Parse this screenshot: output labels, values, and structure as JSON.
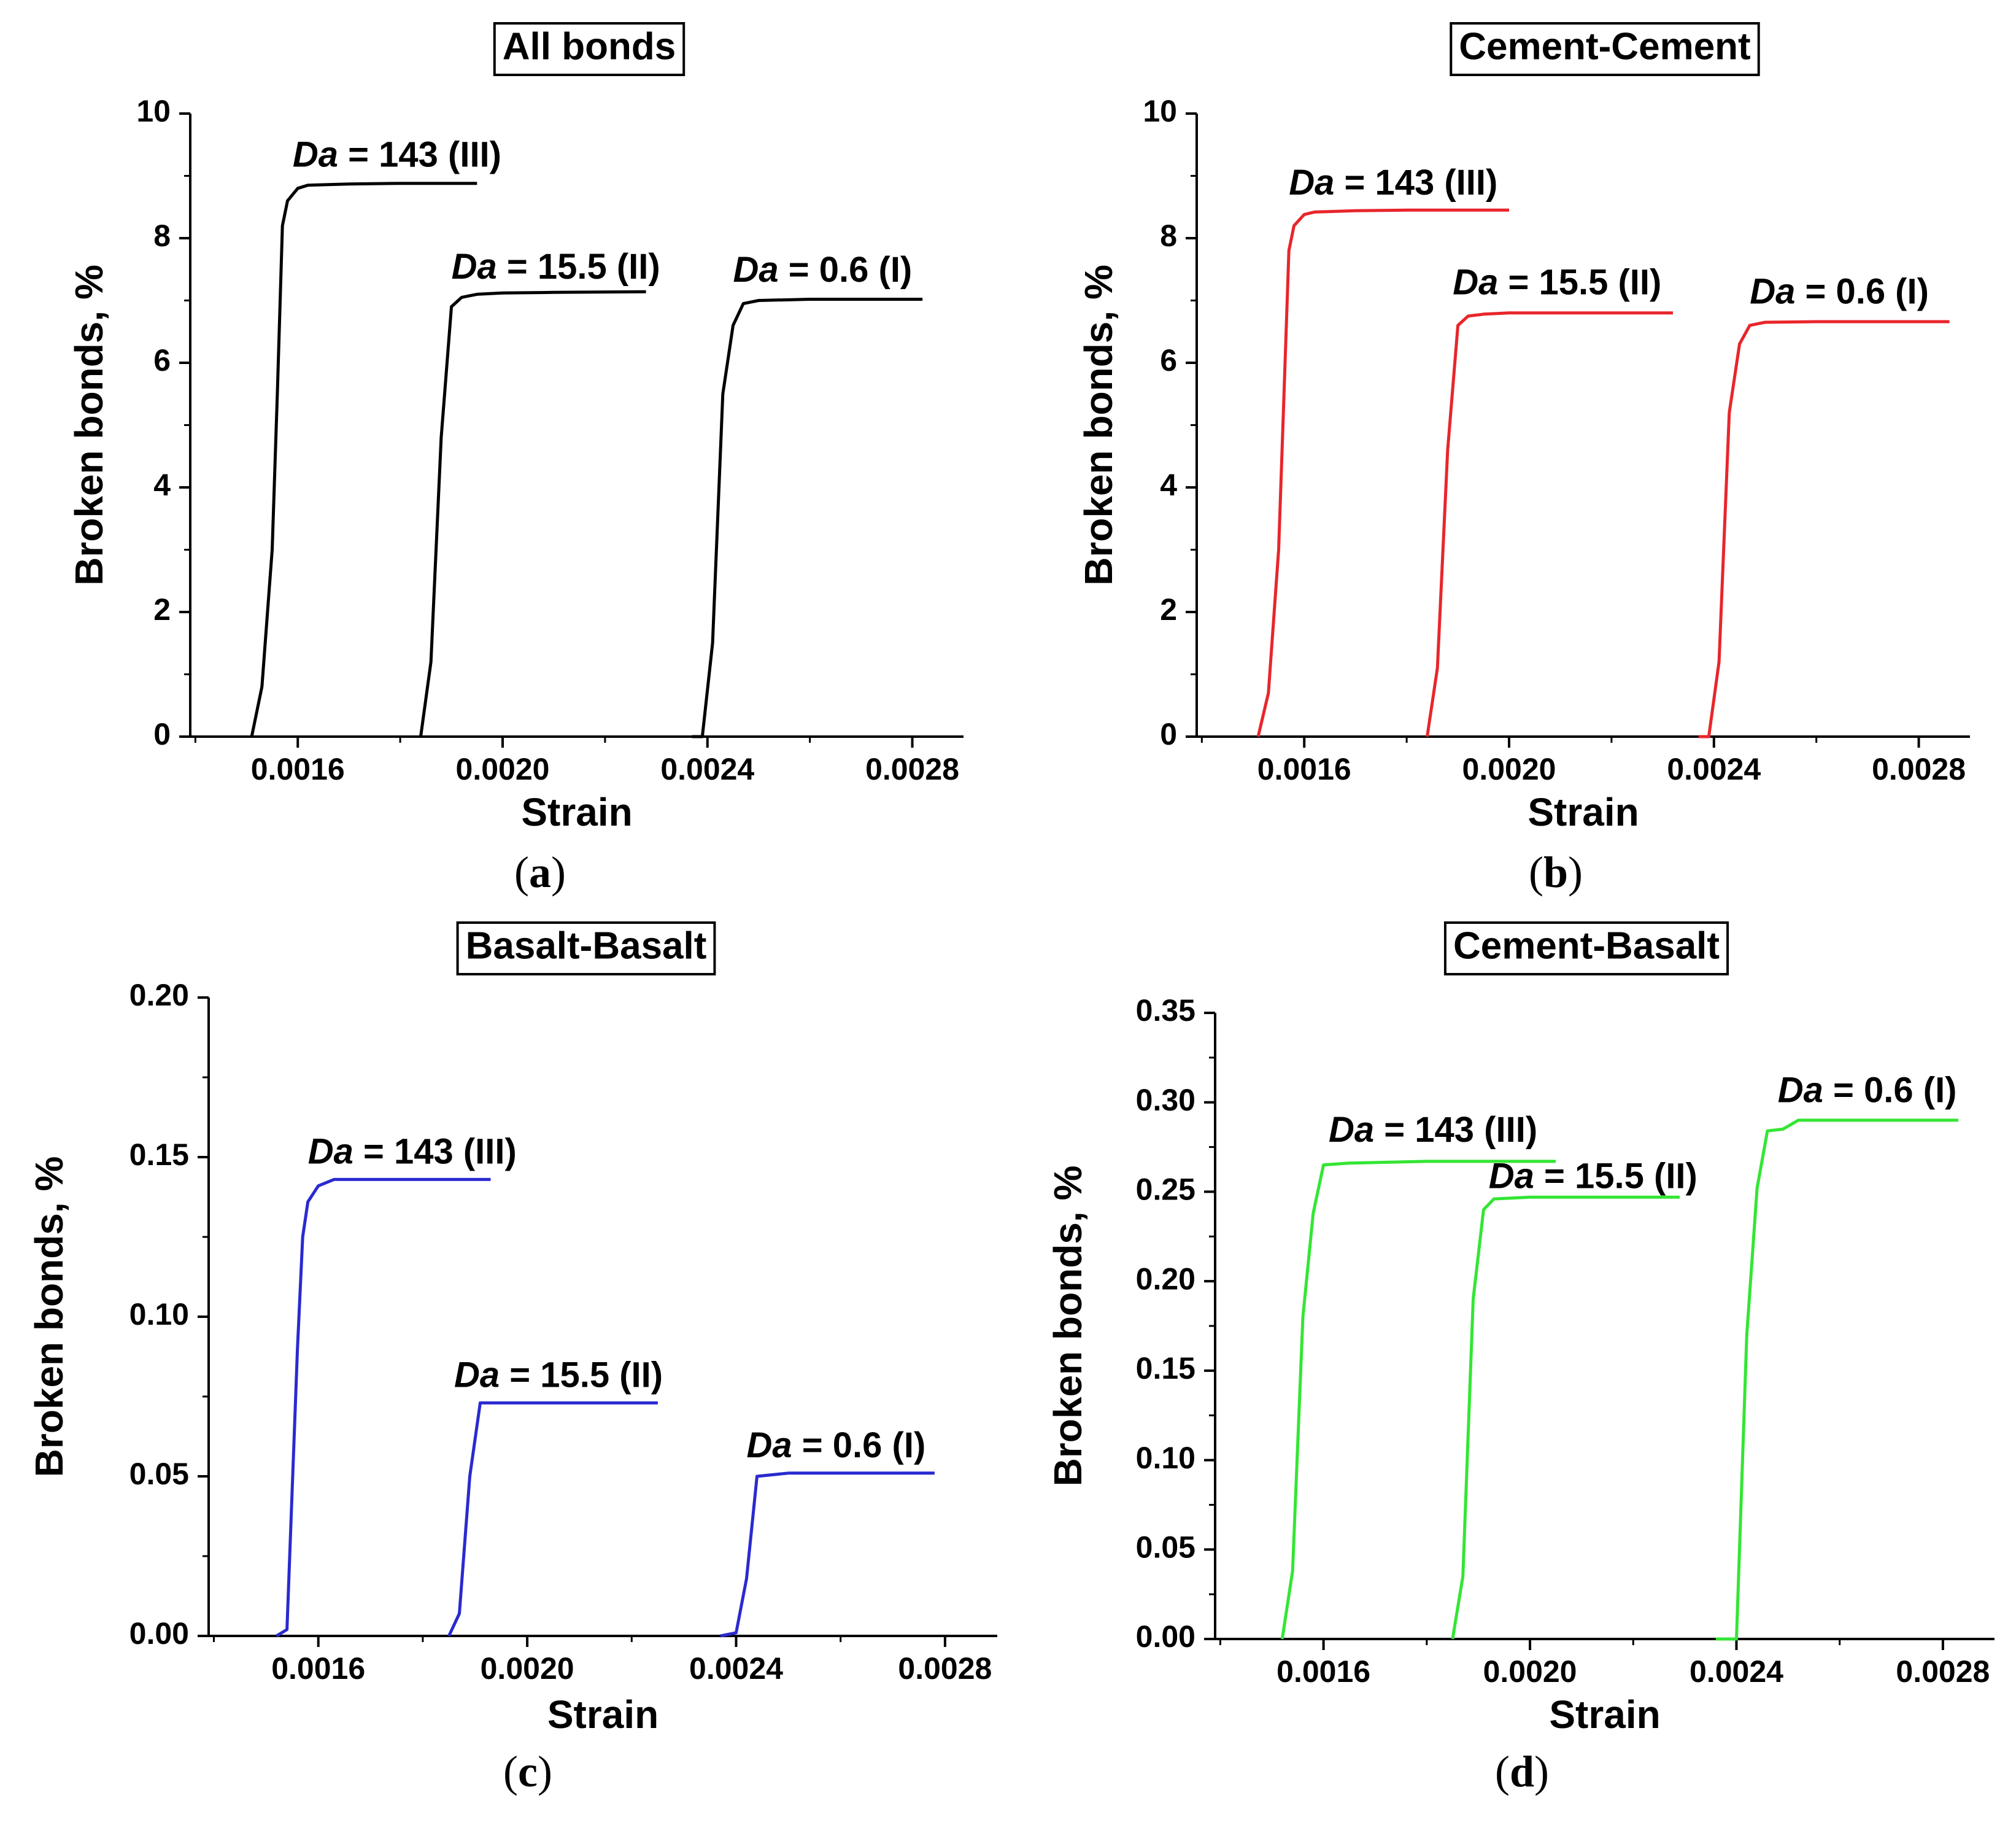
{
  "chart_data": [
    {
      "type": "line",
      "panel": "a",
      "title": "All bonds",
      "xlabel": "Strain",
      "ylabel": "Broken bonds, %",
      "xlim": [
        0.00139,
        0.0029
      ],
      "ylim": [
        0,
        10
      ],
      "xticks": [
        0.0016,
        0.002,
        0.0024,
        0.0028
      ],
      "xtick_labels": [
        "0.0016",
        "0.0020",
        "0.0024",
        "0.0028"
      ],
      "yticks": [
        0,
        2,
        4,
        6,
        8,
        10
      ],
      "ytick_labels": [
        "0",
        "2",
        "4",
        "6",
        "8",
        "10"
      ],
      "color": "#000000",
      "series": [
        {
          "name": "Da = 143 (III)",
          "x": [
            0.00151,
            0.00153,
            0.00155,
            0.00156,
            0.00157,
            0.00158,
            0.0016,
            0.00162,
            0.0017,
            0.0018,
            0.00195
          ],
          "y": [
            0,
            0.8,
            3.0,
            5.5,
            8.2,
            8.6,
            8.8,
            8.85,
            8.87,
            8.88,
            8.88
          ],
          "label_x": 0.00159,
          "label_y": 9.15
        },
        {
          "name": "Da = 15.5 (II)",
          "x": [
            0.00184,
            0.00186,
            0.00188,
            0.0019,
            0.00192,
            0.00195,
            0.002,
            0.0021,
            0.00228
          ],
          "y": [
            0,
            1.2,
            4.8,
            6.9,
            7.05,
            7.1,
            7.12,
            7.13,
            7.14
          ],
          "label_x": 0.0019,
          "label_y": 7.35
        },
        {
          "name": "Da = 0.6 (I)",
          "x": [
            0.00237,
            0.00239,
            0.00241,
            0.00243,
            0.00245,
            0.00247,
            0.0025,
            0.0026,
            0.00282
          ],
          "y": [
            0,
            0,
            1.5,
            5.5,
            6.6,
            6.95,
            7.0,
            7.02,
            7.02
          ],
          "label_x": 0.00245,
          "label_y": 7.3
        }
      ]
    },
    {
      "type": "line",
      "panel": "b",
      "title": "Cement-Cement",
      "xlabel": "Strain",
      "ylabel": "Broken bonds, %",
      "xlim": [
        0.00139,
        0.0029
      ],
      "ylim": [
        0,
        10
      ],
      "xticks": [
        0.0016,
        0.002,
        0.0024,
        0.0028
      ],
      "xtick_labels": [
        "0.0016",
        "0.0020",
        "0.0024",
        "0.0028"
      ],
      "yticks": [
        0,
        2,
        4,
        6,
        8,
        10
      ],
      "ytick_labels": [
        "0",
        "2",
        "4",
        "6",
        "8",
        "10"
      ],
      "color": "#e8262b",
      "series": [
        {
          "name": "Da = 143 (III)",
          "x": [
            0.00151,
            0.00153,
            0.00155,
            0.00156,
            0.00157,
            0.00158,
            0.0016,
            0.00162,
            0.0017,
            0.0018,
            0.002
          ],
          "y": [
            0,
            0.7,
            3.0,
            5.4,
            7.8,
            8.2,
            8.38,
            8.42,
            8.44,
            8.45,
            8.45
          ],
          "label_x": 0.00157,
          "label_y": 8.7
        },
        {
          "name": "Da = 15.5 (II)",
          "x": [
            0.00184,
            0.00186,
            0.00188,
            0.0019,
            0.00192,
            0.00195,
            0.002,
            0.0021,
            0.00232
          ],
          "y": [
            0,
            1.1,
            4.6,
            6.6,
            6.75,
            6.78,
            6.8,
            6.8,
            6.8
          ],
          "label_x": 0.00189,
          "label_y": 7.1
        },
        {
          "name": "Da = 0.6 (I)",
          "x": [
            0.00237,
            0.00239,
            0.00241,
            0.00243,
            0.00245,
            0.00247,
            0.0025,
            0.0026,
            0.00286
          ],
          "y": [
            0,
            0,
            1.2,
            5.2,
            6.3,
            6.6,
            6.65,
            6.66,
            6.66
          ],
          "label_x": 0.00247,
          "label_y": 6.95
        }
      ]
    },
    {
      "type": "line",
      "panel": "c",
      "title": "Basalt-Basalt",
      "xlabel": "Strain",
      "ylabel": "Broken bonds, %",
      "xlim": [
        0.00139,
        0.0029
      ],
      "ylim": [
        0,
        0.2
      ],
      "xticks": [
        0.0016,
        0.002,
        0.0024,
        0.0028
      ],
      "xtick_labels": [
        "0.0016",
        "0.0020",
        "0.0024",
        "0.0028"
      ],
      "yticks": [
        0.0,
        0.05,
        0.1,
        0.15,
        0.2
      ],
      "ytick_labels": [
        "0.00",
        "0.05",
        "0.10",
        "0.15",
        "0.20"
      ],
      "color": "#2a2ad0",
      "series": [
        {
          "name": "Da = 143 (III)",
          "x": [
            0.00152,
            0.00154,
            0.00156,
            0.00157,
            0.00158,
            0.0016,
            0.00163,
            0.0017,
            0.00193
          ],
          "y": [
            0,
            0.002,
            0.09,
            0.125,
            0.136,
            0.141,
            0.143,
            0.143,
            0.143
          ],
          "label_x": 0.00158,
          "label_y": 0.148
        },
        {
          "name": "Da = 15.5 (II)",
          "x": [
            0.00185,
            0.00187,
            0.00189,
            0.00191,
            0.00193,
            0.002,
            0.00225
          ],
          "y": [
            0,
            0.007,
            0.05,
            0.073,
            0.073,
            0.073,
            0.073
          ],
          "label_x": 0.00186,
          "label_y": 0.078
        },
        {
          "name": "Da = 0.6 (I)",
          "x": [
            0.00237,
            0.0024,
            0.00242,
            0.00244,
            0.0025,
            0.0026,
            0.00278
          ],
          "y": [
            0,
            0.001,
            0.018,
            0.05,
            0.051,
            0.051,
            0.051
          ],
          "label_x": 0.00242,
          "label_y": 0.056
        }
      ]
    },
    {
      "type": "line",
      "panel": "d",
      "title": "Cement-Basalt",
      "xlabel": "Strain",
      "ylabel": "Broken bonds, %",
      "xlim": [
        0.00139,
        0.0029
      ],
      "ylim": [
        0,
        0.35
      ],
      "xticks": [
        0.0016,
        0.002,
        0.0024,
        0.0028
      ],
      "xtick_labels": [
        "0.0016",
        "0.0020",
        "0.0024",
        "0.0028"
      ],
      "yticks": [
        0.0,
        0.05,
        0.1,
        0.15,
        0.2,
        0.25,
        0.3,
        0.35
      ],
      "ytick_labels": [
        "0.00",
        "0.05",
        "0.10",
        "0.15",
        "0.20",
        "0.25",
        "0.30",
        "0.35"
      ],
      "color": "#33e633",
      "series": [
        {
          "name": "Da = 143 (III)",
          "x": [
            0.00152,
            0.00154,
            0.00156,
            0.00158,
            0.0016,
            0.00165,
            0.0018,
            0.00205
          ],
          "y": [
            0,
            0.038,
            0.18,
            0.238,
            0.265,
            0.266,
            0.267,
            0.267
          ],
          "label_x": 0.00161,
          "label_y": 0.278
        },
        {
          "name": "Da = 15.5 (II)",
          "x": [
            0.00185,
            0.00187,
            0.00189,
            0.00191,
            0.00193,
            0.002,
            0.00229
          ],
          "y": [
            0,
            0.035,
            0.19,
            0.24,
            0.246,
            0.247,
            0.247
          ],
          "label_x": 0.00192,
          "label_y": 0.252
        },
        {
          "name": "Da = 0.6 (I)",
          "x": [
            0.00236,
            0.0024,
            0.00242,
            0.00244,
            0.00246,
            0.00249,
            0.00252,
            0.0026,
            0.00283
          ],
          "y": [
            0,
            0,
            0.17,
            0.252,
            0.284,
            0.285,
            0.29,
            0.29,
            0.29
          ],
          "label_x": 0.00248,
          "label_y": 0.3
        }
      ]
    }
  ]
}
